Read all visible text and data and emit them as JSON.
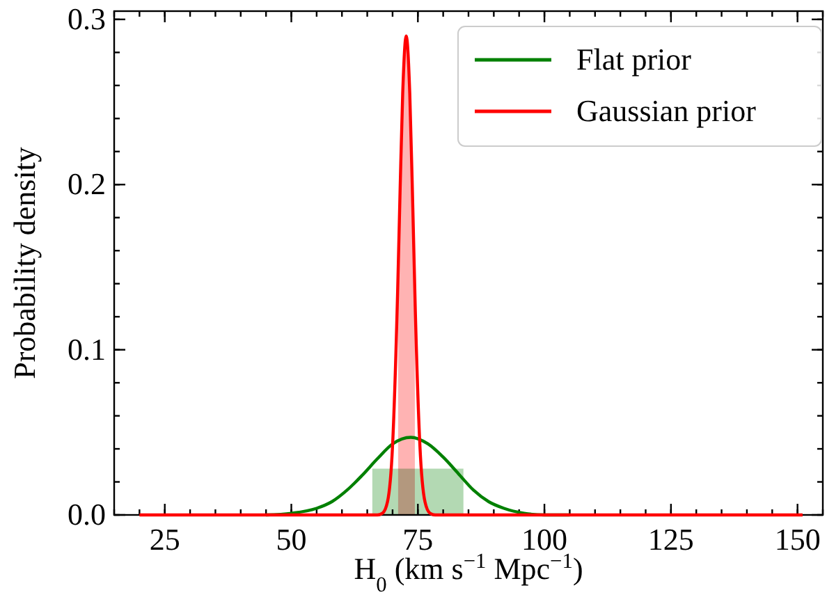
{
  "chart_data": {
    "type": "line",
    "xlabel": "H$_{0}$ (km s$^{−1}$ Mpc$^{−1}$)",
    "ylabel": "Probability density",
    "xlim": [
      15,
      155
    ],
    "ylim": [
      0,
      0.305
    ],
    "xticks": [
      25,
      50,
      75,
      100,
      125,
      150
    ],
    "yticks": [
      {
        "value": 0,
        "label": "0.0"
      },
      {
        "value": 0.1,
        "label": "0.1"
      },
      {
        "value": 0.2,
        "label": "0.2"
      },
      {
        "value": 0.3,
        "label": "0.3"
      }
    ],
    "grid": false,
    "legend": "top right",
    "marker": "none",
    "line_style": "solid",
    "series": [
      {
        "name": "Flat prior",
        "color": "#008000",
        "x": [
          45,
          50,
          55,
          58,
          61,
          64,
          67,
          70,
          73.6,
          77,
          80,
          83,
          86,
          89,
          92,
          96,
          100,
          105
        ],
        "values": [
          0,
          0.001,
          0.004,
          0.008,
          0.015,
          0.024,
          0.034,
          0.043,
          0.047,
          0.043,
          0.035,
          0.025,
          0.015,
          0.008,
          0.004,
          0.001,
          0,
          0
        ]
      },
      {
        "name": "Gaussian prior",
        "color": "#ff0000",
        "x": [
          20,
          67,
          68,
          69,
          70,
          71,
          71.5,
          72,
          72.7,
          73.4,
          74,
          74.5,
          75.4,
          76.4,
          77.4,
          78.4,
          151
        ],
        "values": [
          0,
          0,
          0.001,
          0.008,
          0.042,
          0.135,
          0.198,
          0.255,
          0.29,
          0.255,
          0.186,
          0.123,
          0.042,
          0.008,
          0.001,
          0,
          0
        ]
      },
      {
        "type": "area",
        "color": "#b3d9b3",
        "x": [
          66,
          84
        ],
        "values": [
          0.028,
          0.028
        ]
      },
      {
        "type": "area",
        "color": "#ffb3b3",
        "x": [
          71.1,
          71.5,
          72,
          72.7,
          73.4,
          74,
          74.4
        ],
        "values": [
          0.147,
          0.198,
          0.255,
          0.29,
          0.255,
          0.186,
          0.135
        ]
      }
    ]
  }
}
